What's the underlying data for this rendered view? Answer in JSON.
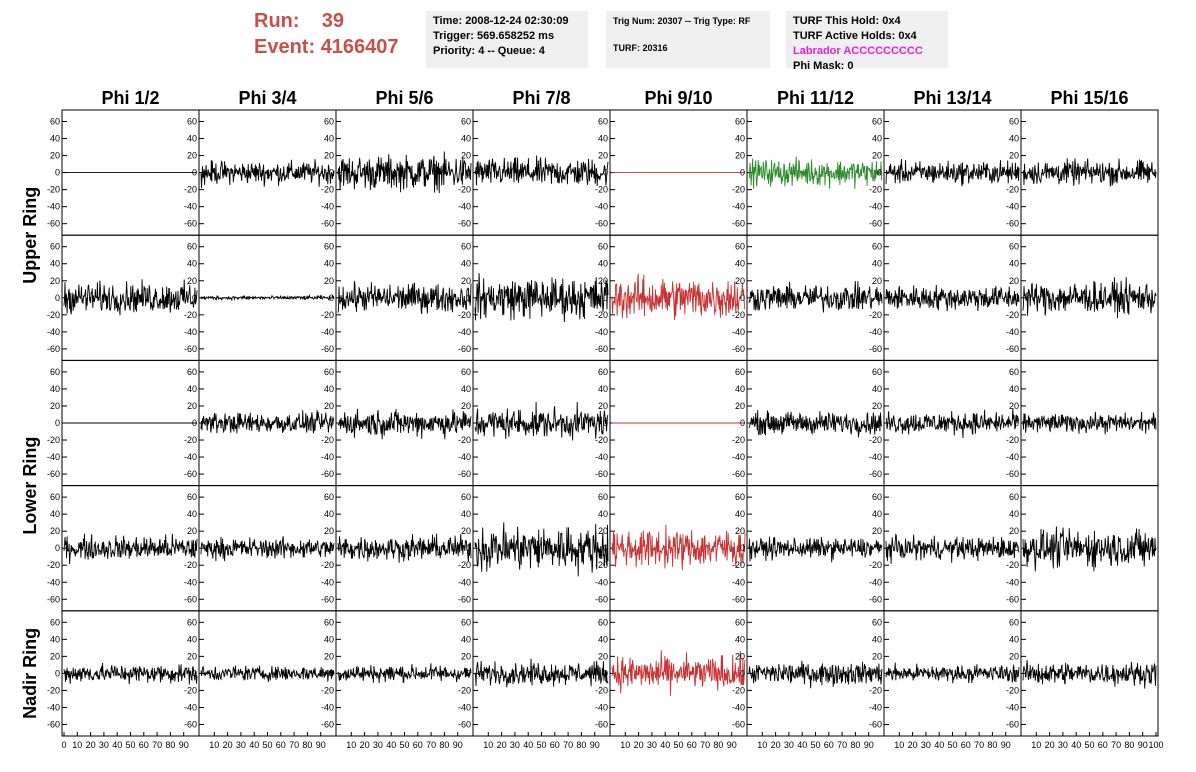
{
  "header": {
    "run_label": "Run:",
    "run_value": "39",
    "event_label": "Event:",
    "event_value": "4166407"
  },
  "info_box_1": {
    "time": "Time: 2008-12-24 02:30:09",
    "trigger": "Trigger: 569.658252 ms",
    "priority": "Priority: 4 -- Queue: 4"
  },
  "info_box_2": {
    "trig": "Trig Num: 20307 -- Trig Type: RF",
    "turf": "TURF: 20316"
  },
  "info_box_3": {
    "hold": "TURF This Hold: 0x4",
    "active": "TURF Active Holds: 0x4",
    "labrador": "Labrador ACCCCCCCCC",
    "phimask": "Phi Mask: 0"
  },
  "colors": {
    "header_red": "#c8504a",
    "trace_black": "#000000",
    "trace_red": "#c83232",
    "trace_green": "#2a8a2a",
    "labrador_magenta": "#e020e0",
    "info_box_bg": "#efefef"
  },
  "chart_data": {
    "type": "line",
    "columns": [
      "Phi 1/2",
      "Phi 3/4",
      "Phi 5/6",
      "Phi 7/8",
      "Phi 9/10",
      "Phi 11/12",
      "Phi 13/14",
      "Phi 15/16"
    ],
    "rows": [
      "Upper Ring",
      "Upper Ring",
      "Lower Ring",
      "Lower Ring",
      "Nadir Ring"
    ],
    "row_titles": [
      "Upper Ring",
      "Lower Ring",
      "Nadir Ring"
    ],
    "ylim": [
      -70,
      70
    ],
    "y_ticks": [
      -60,
      -40,
      -20,
      0,
      20,
      40,
      60
    ],
    "xlim": [
      0,
      100
    ],
    "x_tick_labels": [
      "0",
      "10",
      "20",
      "30",
      "40",
      "50",
      "60",
      "70",
      "80",
      "90",
      "100"
    ],
    "panel_colors": [
      [
        "#000000",
        "#000000",
        "#000000",
        "#000000",
        "#c83232",
        "#2a8a2a",
        "#000000",
        "#000000"
      ],
      [
        "#000000",
        "#000000",
        "#000000",
        "#000000",
        "#c83232",
        "#000000",
        "#000000",
        "#000000"
      ],
      [
        "#000000",
        "#000000",
        "#000000",
        "#000000",
        "#c83232",
        "#000000",
        "#000000",
        "#000000"
      ],
      [
        "#000000",
        "#000000",
        "#000000",
        "#000000",
        "#c83232",
        "#000000",
        "#000000",
        "#000000"
      ],
      [
        "#000000",
        "#000000",
        "#000000",
        "#000000",
        "#c83232",
        "#000000",
        "#000000",
        "#000000"
      ]
    ],
    "panel_amplitudes": [
      [
        0,
        12,
        18,
        15,
        0,
        14,
        12,
        13
      ],
      [
        16,
        2,
        15,
        22,
        22,
        14,
        13,
        17
      ],
      [
        0,
        11,
        14,
        16,
        0,
        12,
        12,
        10
      ],
      [
        13,
        11,
        13,
        24,
        20,
        11,
        12,
        20
      ],
      [
        10,
        8,
        9,
        12,
        18,
        12,
        9,
        12
      ]
    ]
  }
}
